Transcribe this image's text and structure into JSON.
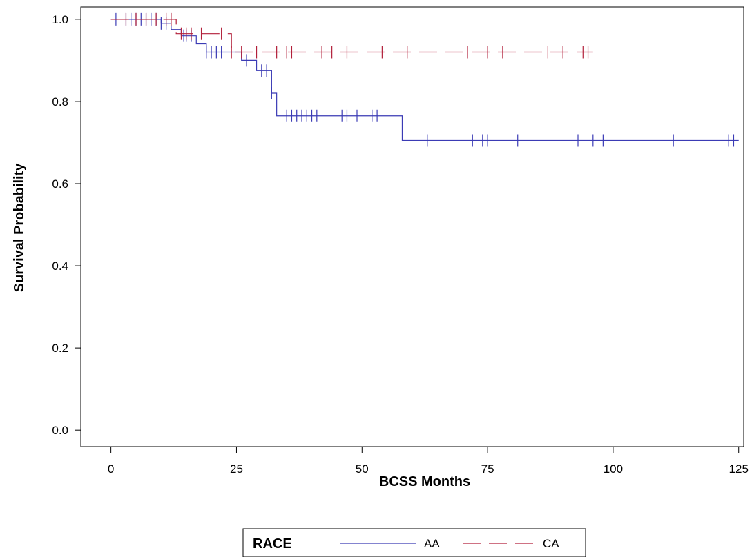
{
  "chart_data": {
    "type": "line",
    "subtype": "kaplan-meier",
    "xlabel": "BCSS Months",
    "ylabel": "Survival Probability",
    "xlim": [
      -6,
      126
    ],
    "ylim": [
      -0.04,
      1.03
    ],
    "xticks": [
      0,
      25,
      50,
      75,
      100,
      125
    ],
    "yticks": [
      0.0,
      0.2,
      0.4,
      0.6,
      0.8,
      1.0
    ],
    "ytick_labels": [
      "0.0",
      "0.2",
      "0.4",
      "0.6",
      "0.8",
      "1.0"
    ],
    "grid": false,
    "legend": {
      "title": "RACE",
      "position": "bottom"
    },
    "series": [
      {
        "name": "AA",
        "color": "#3b3bb5",
        "dash": "solid",
        "steps": [
          [
            0,
            1.0
          ],
          [
            10,
            0.99
          ],
          [
            12,
            0.975
          ],
          [
            14,
            0.96
          ],
          [
            17,
            0.94
          ],
          [
            19,
            0.92
          ],
          [
            26,
            0.9
          ],
          [
            29,
            0.875
          ],
          [
            32,
            0.82
          ],
          [
            33,
            0.765
          ],
          [
            58,
            0.705
          ],
          [
            125,
            0.705
          ]
        ],
        "censored": [
          1,
          3,
          4,
          5,
          6,
          7,
          8,
          9,
          10,
          11,
          14.5,
          15,
          16,
          19,
          20,
          21,
          22,
          27,
          30,
          31,
          32,
          35,
          36,
          37,
          38,
          39,
          40,
          41,
          46,
          47,
          49,
          52,
          53,
          63,
          72,
          74,
          75,
          81,
          93,
          96,
          98,
          112,
          123,
          124
        ]
      },
      {
        "name": "CA",
        "color": "#b21f3a",
        "dash": "long-dash",
        "steps": [
          [
            0,
            1.0
          ],
          [
            13,
            0.965
          ],
          [
            24,
            0.92
          ],
          [
            96,
            0.92
          ]
        ],
        "censored": [
          3,
          5,
          7,
          9,
          11,
          12,
          14,
          15,
          16,
          18,
          22,
          24,
          26,
          29,
          33,
          35,
          36,
          42,
          44,
          47,
          54,
          59,
          71,
          75,
          78,
          87,
          90,
          94,
          95
        ]
      }
    ]
  }
}
